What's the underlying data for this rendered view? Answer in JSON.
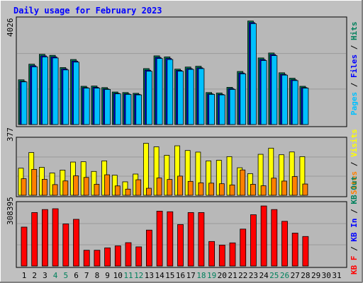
{
  "chart_data": {
    "type": "bar",
    "title": "Daily usage for February 2023",
    "days": [
      "1",
      "2",
      "3",
      "4",
      "5",
      "6",
      "7",
      "8",
      "9",
      "10",
      "11",
      "12",
      "13",
      "14",
      "15",
      "16",
      "17",
      "18",
      "19",
      "20",
      "21",
      "22",
      "23",
      "24",
      "25",
      "26",
      "27",
      "28",
      "29",
      "30",
      "31"
    ],
    "weekend_days": [
      4,
      5,
      11,
      12,
      18,
      19,
      25,
      26
    ],
    "panels": [
      {
        "id": "hits-files-pages",
        "ymax_label": "4026",
        "ymax": 4026,
        "series": [
          {
            "name": "Hits",
            "color": "#00805c",
            "values": [
              1720,
              2320,
              2700,
              2660,
              2190,
              2500,
              1470,
              1480,
              1420,
              1250,
              1230,
              1200,
              2150,
              2640,
              2600,
              2130,
              2210,
              2240,
              1230,
              1210,
              1430,
              2040,
              3980,
              2560,
              2750,
              1990,
              1780,
              1470,
              0,
              0,
              0
            ]
          },
          {
            "name": "Files",
            "color": "#0000ff",
            "values": [
              1660,
              2260,
              2640,
              2600,
              2140,
              2440,
              1420,
              1430,
              1370,
              1200,
              1180,
              1160,
              2090,
              2580,
              2540,
              2080,
              2150,
              2180,
              1180,
              1160,
              1380,
              1980,
              3920,
              2500,
              2690,
              1930,
              1720,
              1420,
              0,
              0,
              0
            ]
          },
          {
            "name": "Pages",
            "color": "#00c0ff",
            "values": [
              1640,
              2220,
              2600,
              2560,
              2100,
              2400,
              1400,
              1400,
              1350,
              1180,
              1160,
              1140,
              2050,
              2540,
              2500,
              2050,
              2120,
              2150,
              1160,
              1140,
              1350,
              1950,
              3880,
              2460,
              2650,
              1900,
              1690,
              1400,
              0,
              0,
              0
            ]
          }
        ]
      },
      {
        "id": "visits-sites",
        "ymax_label": "377",
        "ymax": 377,
        "series": [
          {
            "name": "Visits",
            "color": "#ffff00",
            "values": [
              185,
              292,
              191,
              152,
              172,
              227,
              229,
              163,
              235,
              137,
              92,
              145,
              355,
              331,
              273,
              338,
              306,
              295,
              235,
              239,
              264,
              188,
              148,
              280,
              322,
              277,
              296,
              264,
              0,
              0,
              0
            ]
          },
          {
            "name": "Sites",
            "color": "#ff8000",
            "values": [
              113,
              177,
              109,
              73,
              98,
              133,
              122,
              75,
              140,
              64,
              42,
              106,
              48,
              118,
              108,
              131,
              95,
              85,
              83,
              79,
              70,
              173,
              75,
              65,
              117,
              97,
              128,
              77,
              0,
              0,
              0
            ]
          }
        ]
      },
      {
        "id": "kbf-kbin-kbout",
        "ymax_label": "308395",
        "ymax": 308395,
        "series": [
          {
            "name": "KB F",
            "color": "#ff0000",
            "values": [
              195000,
              268000,
              283000,
              287000,
              211000,
              234000,
              79000,
              79000,
              91000,
              101000,
              117000,
              96000,
              180000,
              275000,
              272000,
              208000,
              268000,
              268000,
              123000,
              105000,
              116000,
              185000,
              257000,
              301000,
              283000,
              224000,
              165000,
              148000,
              0,
              0,
              0
            ]
          },
          {
            "name": "KB In",
            "color": "#0000ff",
            "values": []
          },
          {
            "name": "KB Out",
            "color": "#00805c",
            "values": []
          }
        ]
      }
    ]
  }
}
